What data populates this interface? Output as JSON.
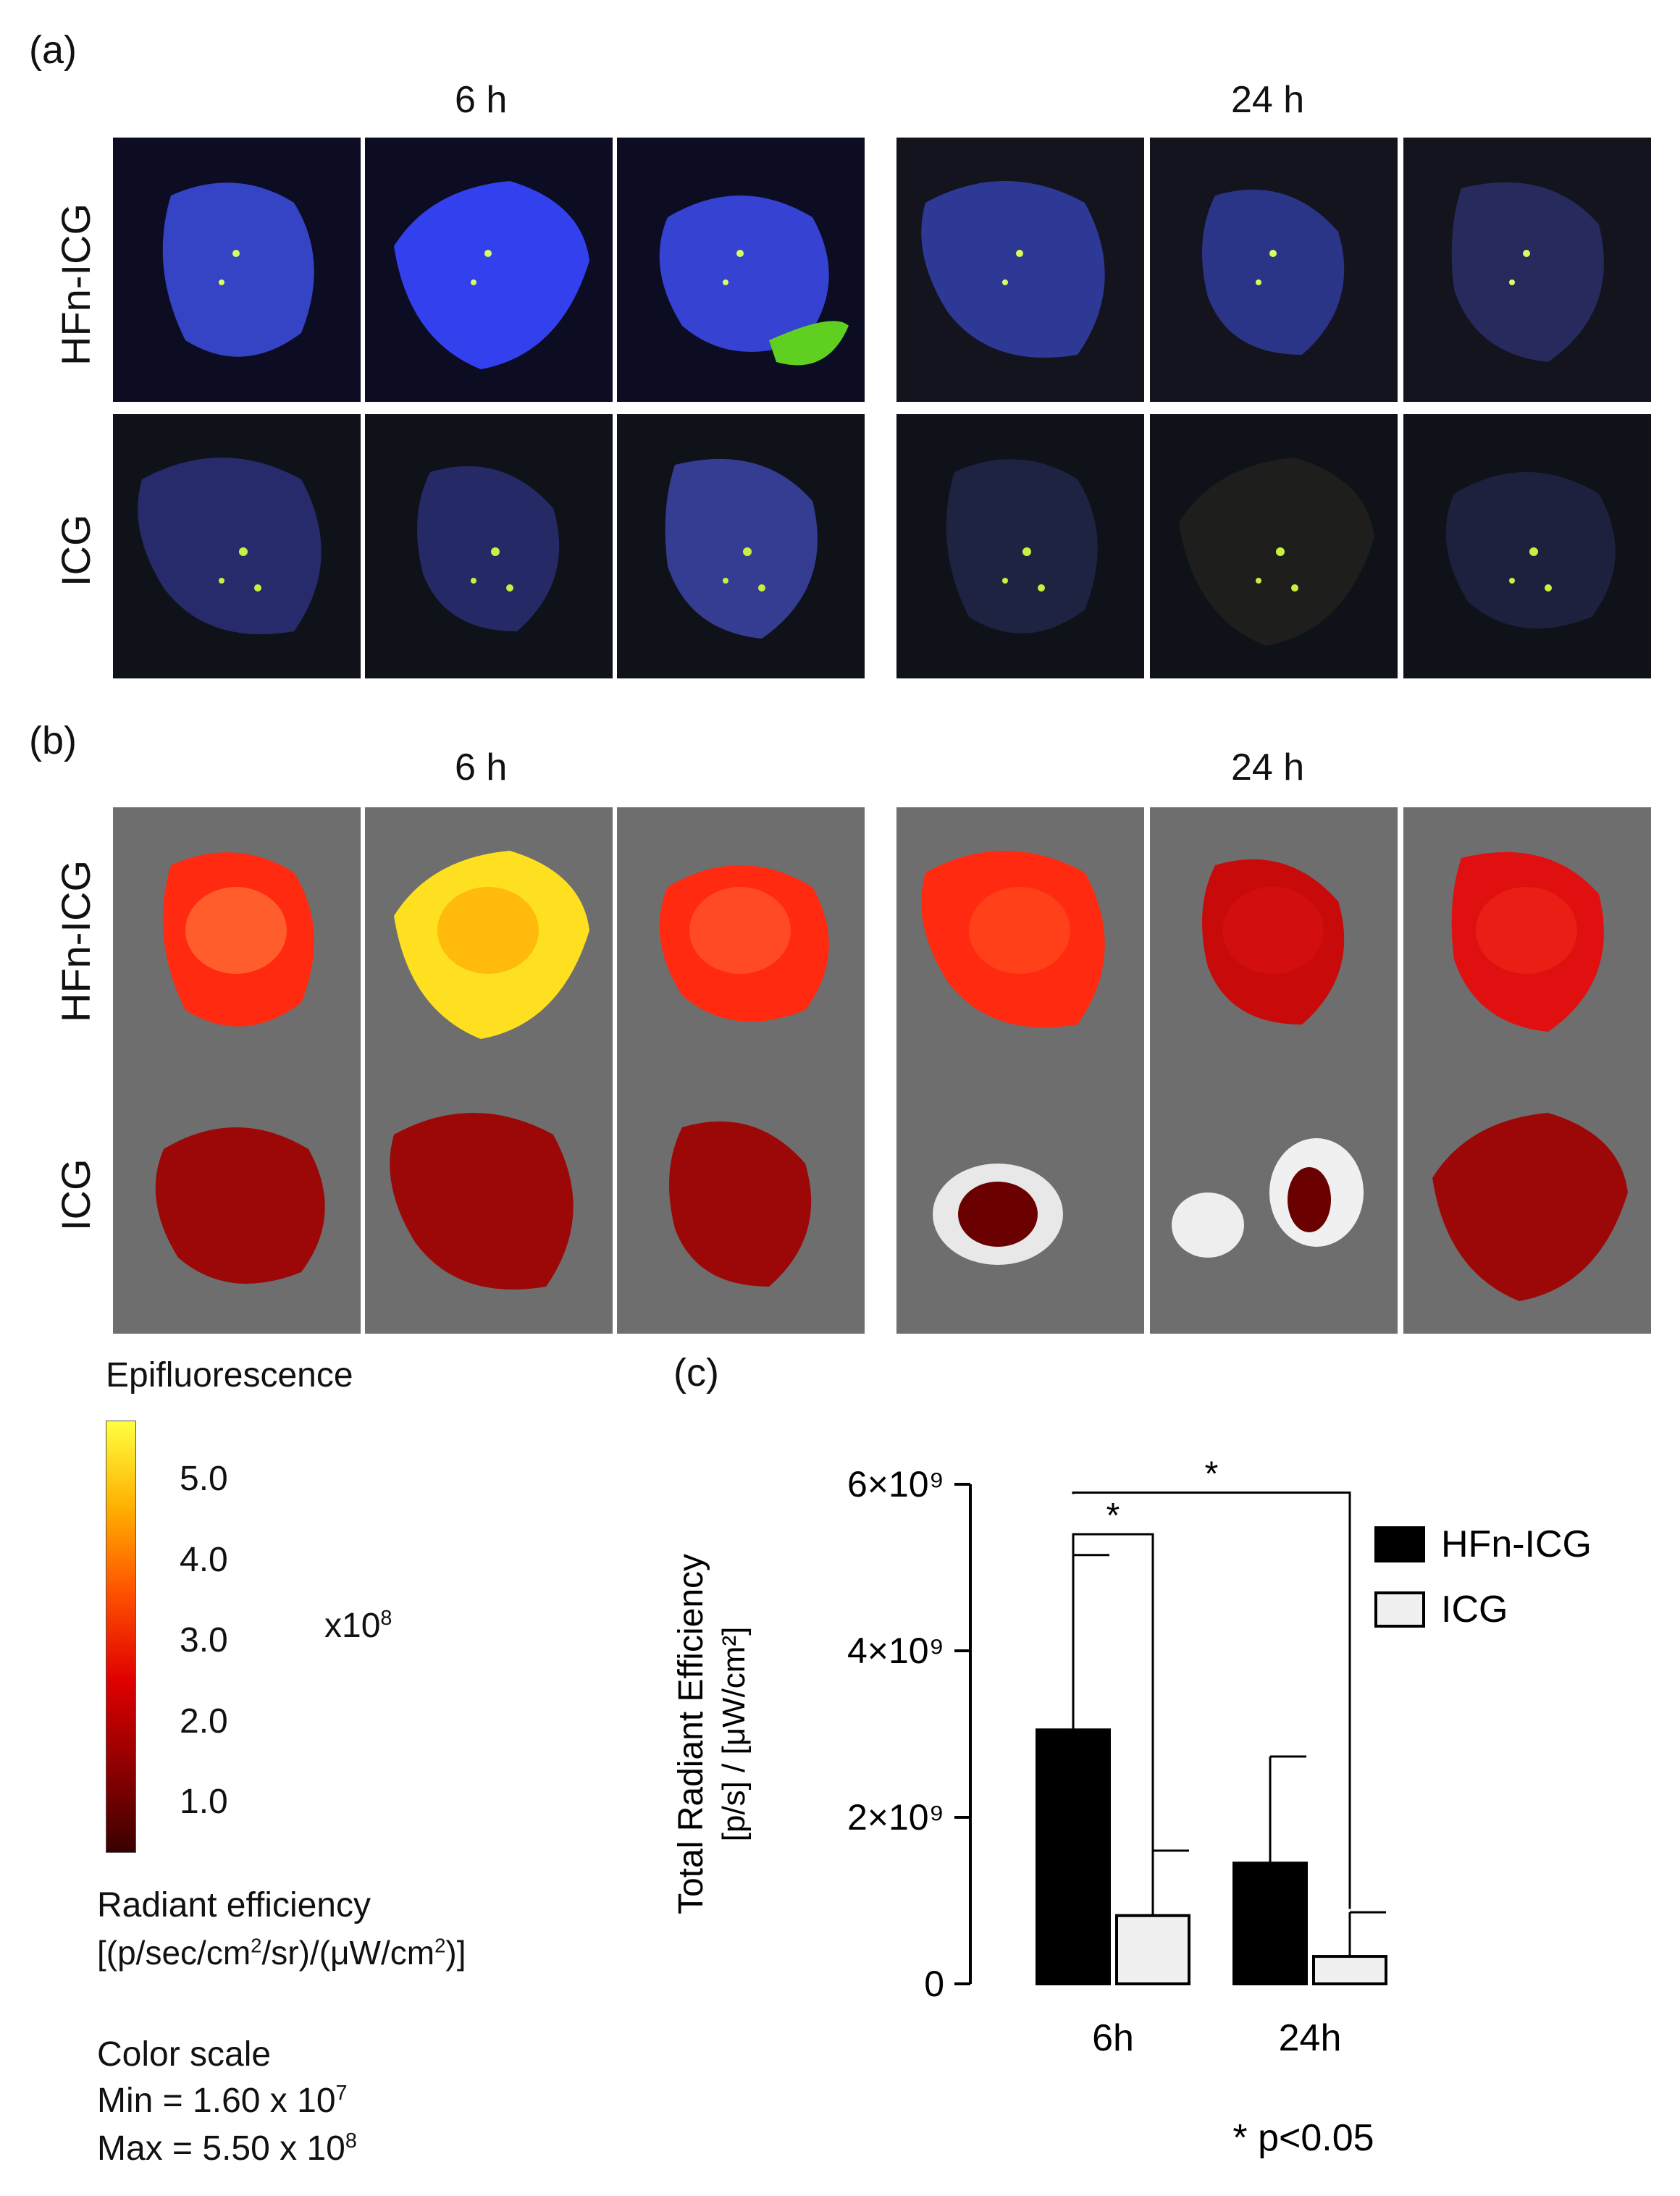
{
  "panels": {
    "a": {
      "letter": "(a)",
      "time_left": "6 h",
      "time_right": "24 h",
      "row_top": "HFn-ICG",
      "row_bottom": "ICG"
    },
    "b": {
      "letter": "(b)",
      "time_left": "6 h",
      "time_right": "24 h",
      "row_top": "HFn-ICG",
      "row_bottom": "ICG"
    },
    "c": {
      "letter": "(c)"
    }
  },
  "colorbar": {
    "title": "Epifluorescence",
    "ticks": [
      "5.0",
      "4.0",
      "3.0",
      "2.0",
      "1.0"
    ],
    "multiplier": "x10",
    "multiplier_exp": "8",
    "unit_line1": "Radiant efficiency",
    "unit_line2": "[(p/sec/cm",
    "unit_line2_b": "/sr)/(μW/cm",
    "unit_line2_c": ")]",
    "sq": "2",
    "scale_title": "Color scale",
    "min_label": "Min = 1.60 x 10",
    "min_exp": "7",
    "max_label": "Max = 5.50 x 10",
    "max_exp": "8",
    "colors": [
      "#ffff40",
      "#ffb000",
      "#ff5000",
      "#e00000",
      "#900000",
      "#3a0000"
    ]
  },
  "chart_data": {
    "type": "bar",
    "ylabel_line1": "Total Radiant Efficiency",
    "ylabel_line2": "[p/s] / [μW/cm²]",
    "categories": [
      "6h",
      "24h"
    ],
    "ylim": [
      0,
      6000000000
    ],
    "yticks": [
      {
        "value": 0,
        "label": "0"
      },
      {
        "value": 2000000000,
        "label": "2×10⁹"
      },
      {
        "value": 4000000000,
        "label": "4×10⁹"
      },
      {
        "value": 6000000000,
        "label": "6×10⁹"
      }
    ],
    "series": [
      {
        "name": "HFn-ICG",
        "values": [
          3050000000,
          1450000000
        ],
        "errors": [
          2100000000,
          1280000000
        ],
        "color": "#000000"
      },
      {
        "name": "ICG",
        "values": [
          820000000,
          330000000
        ],
        "errors": [
          780000000,
          530000000
        ],
        "color": "#f0f0f0"
      }
    ],
    "significance": [
      {
        "label": "*",
        "from": "HFn-ICG 6h",
        "to": "ICG 6h"
      },
      {
        "label": "*",
        "from": "HFn-ICG 6h",
        "to": "ICG 24h"
      }
    ],
    "footnote": "* p<0.05",
    "legend_position": "top-right"
  }
}
